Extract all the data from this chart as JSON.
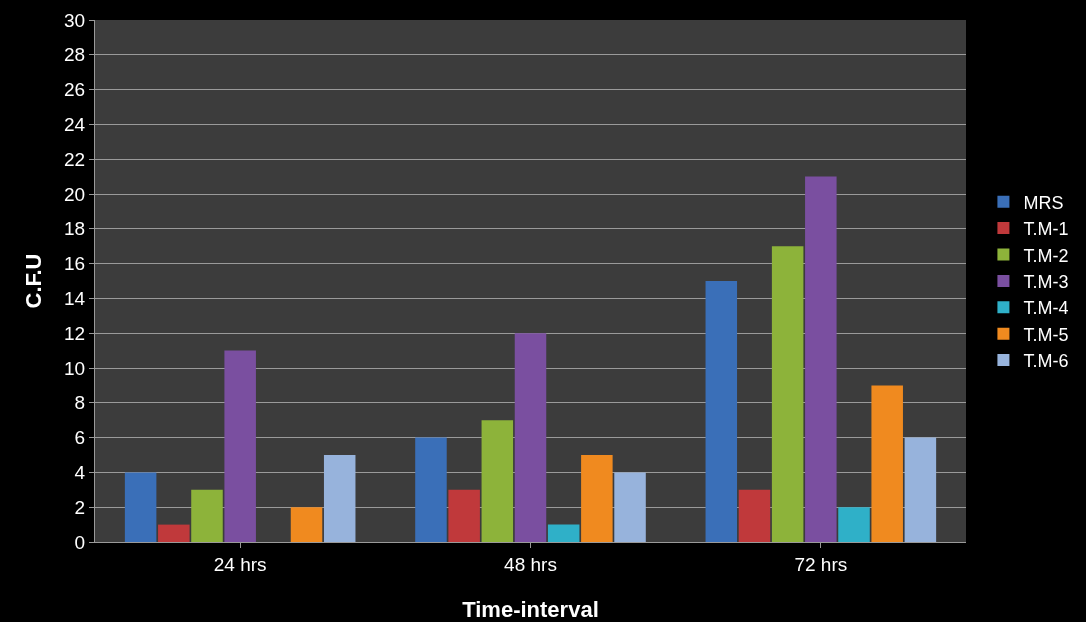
{
  "chart_data": {
    "type": "bar",
    "xlabel": "Time-interval",
    "ylabel": "C.F.U",
    "categories": [
      "24 hrs",
      "48 hrs",
      "72 hrs"
    ],
    "series": [
      {
        "name": "MRS",
        "color": "#3a6fb8",
        "values": [
          4,
          6,
          15
        ]
      },
      {
        "name": "T.M-1",
        "color": "#c0393b",
        "values": [
          1,
          3,
          3
        ]
      },
      {
        "name": "T.M-2",
        "color": "#8db33a",
        "values": [
          3,
          7,
          17
        ]
      },
      {
        "name": "T.M-3",
        "color": "#7a4fa0",
        "values": [
          11,
          12,
          21
        ]
      },
      {
        "name": "T.M-4",
        "color": "#2fb0c8",
        "values": [
          0,
          1,
          2
        ]
      },
      {
        "name": "T.M-5",
        "color": "#f08a1f",
        "values": [
          2,
          5,
          9
        ]
      },
      {
        "name": "T.M-6",
        "color": "#97b3dc",
        "values": [
          5,
          4,
          6
        ]
      }
    ],
    "ylim": [
      0,
      30
    ],
    "yticks": [
      0,
      2,
      4,
      6,
      8,
      10,
      12,
      14,
      16,
      18,
      20,
      22,
      24,
      26,
      28,
      30
    ],
    "grid": "y",
    "legend": "right"
  }
}
